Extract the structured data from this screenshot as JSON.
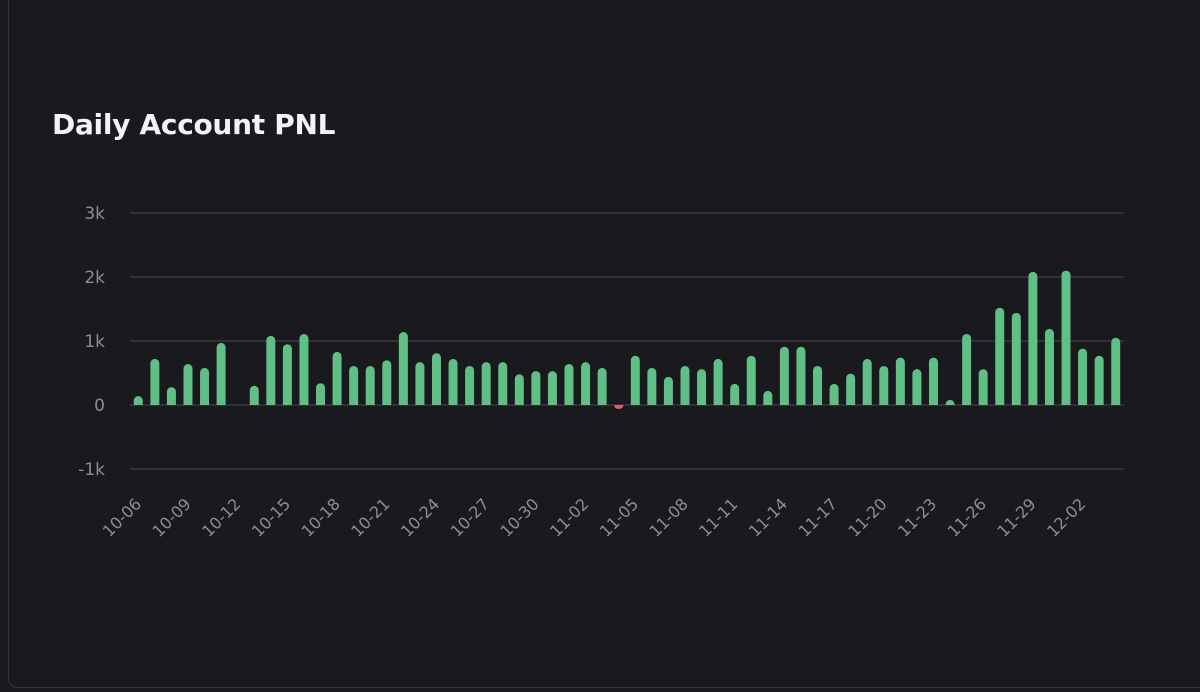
{
  "chart_data": {
    "type": "bar",
    "title": "Daily Account PNL",
    "xlabel": "",
    "ylabel": "",
    "ylim": [
      -1000,
      3000
    ],
    "yticks": [
      -1000,
      0,
      1000,
      2000,
      3000
    ],
    "ytick_labels": [
      "-1k",
      "0",
      "1k",
      "2k",
      "3k"
    ],
    "grid": true,
    "colors": {
      "positive": "#5fbf85",
      "negative": "#e5556a",
      "grid": "#383942",
      "text": "#8b8e99"
    },
    "categories": [
      "10-06",
      "10-07",
      "10-08",
      "10-09",
      "10-10",
      "10-11",
      "10-12",
      "10-13",
      "10-14",
      "10-15",
      "10-16",
      "10-17",
      "10-18",
      "10-19",
      "10-20",
      "10-21",
      "10-22",
      "10-23",
      "10-24",
      "10-25",
      "10-26",
      "10-27",
      "10-28",
      "10-29",
      "10-30",
      "10-31",
      "11-01",
      "11-02",
      "11-03",
      "11-04",
      "11-05",
      "11-06",
      "11-07",
      "11-08",
      "11-09",
      "11-10",
      "11-11",
      "11-12",
      "11-13",
      "11-14",
      "11-15",
      "11-16",
      "11-17",
      "11-18",
      "11-19",
      "11-20",
      "11-21",
      "11-22",
      "11-23",
      "11-24",
      "11-25",
      "11-26",
      "11-27",
      "11-28",
      "11-29",
      "11-30",
      "12-01",
      "12-02",
      "12-03",
      "12-04"
    ],
    "values": [
      140,
      720,
      280,
      640,
      580,
      970,
      0,
      300,
      1080,
      950,
      1110,
      340,
      830,
      610,
      610,
      700,
      1140,
      670,
      810,
      720,
      610,
      670,
      670,
      480,
      530,
      530,
      640,
      670,
      580,
      -30,
      770,
      580,
      440,
      610,
      560,
      720,
      330,
      770,
      220,
      910,
      910,
      610,
      330,
      490,
      720,
      610,
      740,
      560,
      740,
      80,
      1110,
      560,
      1520,
      1440,
      2080,
      1190,
      2100,
      880,
      770,
      1050
    ],
    "xtick_labels": [
      "10-06",
      "10-09",
      "10-12",
      "10-15",
      "10-18",
      "10-21",
      "10-24",
      "10-27",
      "10-30",
      "11-02",
      "11-05",
      "11-08",
      "11-11",
      "11-14",
      "11-17",
      "11-20",
      "11-23",
      "11-26",
      "11-29",
      "12-02"
    ]
  }
}
